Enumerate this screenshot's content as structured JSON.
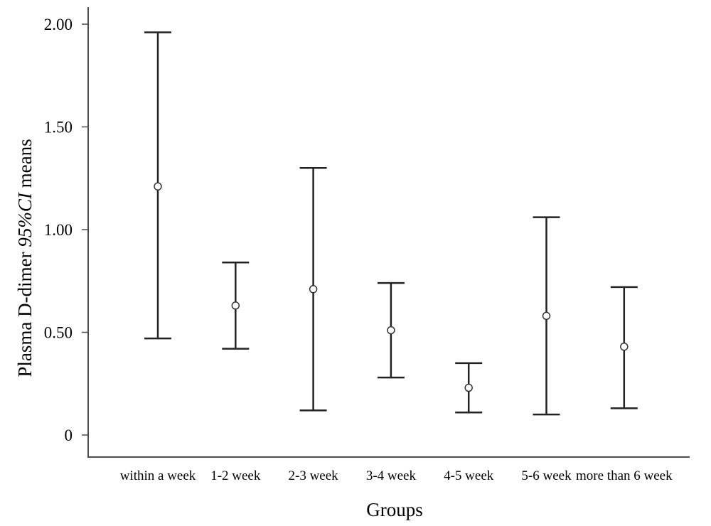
{
  "chart_data": {
    "type": "errorbar",
    "xlabel": "Groups",
    "ylabel_prefix": "Plasma D-dimer ",
    "ylabel_italic": "95%CI",
    "ylabel_suffix": " means",
    "ylim": [
      0,
      2.0
    ],
    "yticks": [
      {
        "value": 0,
        "label": "0"
      },
      {
        "value": 0.5,
        "label": "0.50"
      },
      {
        "value": 1.0,
        "label": "1.00"
      },
      {
        "value": 1.5,
        "label": "1.50"
      },
      {
        "value": 2.0,
        "label": "2.00"
      }
    ],
    "categories": [
      "within a week",
      "1-2 week",
      "2-3 week",
      "3-4 week",
      "4-5 week",
      "5-6 week",
      "more than 6 week"
    ],
    "means": [
      1.21,
      0.63,
      0.71,
      0.51,
      0.23,
      0.58,
      0.43
    ],
    "lower": [
      0.47,
      0.42,
      0.12,
      0.28,
      0.11,
      0.1,
      0.13
    ],
    "upper": [
      1.96,
      0.84,
      1.3,
      0.74,
      0.35,
      1.06,
      0.72
    ],
    "grid": false,
    "legend": "none"
  }
}
